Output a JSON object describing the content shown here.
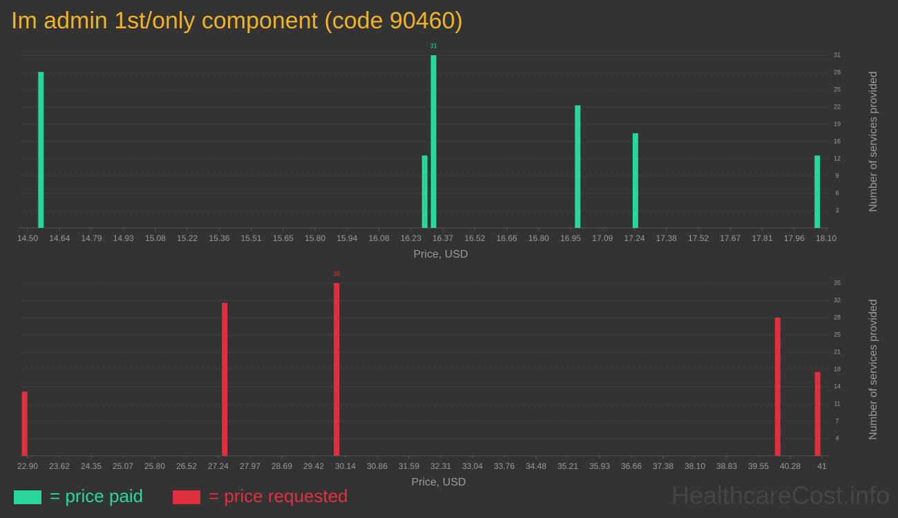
{
  "title": "Im admin 1st/only component (code 90460)",
  "watermark": "HealthcareCost.info",
  "chart_data": [
    {
      "type": "bar",
      "x_label": "Price, USD",
      "y_label": "Number of services provided",
      "xlim": [
        14.5,
        18.1
      ],
      "xticks": [
        {
          "value": 14.5,
          "label": "14.50"
        },
        {
          "value": 14.644,
          "label": "14.64"
        },
        {
          "value": 14.788,
          "label": "14.79"
        },
        {
          "value": 14.932,
          "label": "14.93"
        },
        {
          "value": 15.076,
          "label": "15.08"
        },
        {
          "value": 15.22,
          "label": "15.22"
        },
        {
          "value": 15.364,
          "label": "15.36"
        },
        {
          "value": 15.508,
          "label": "15.51"
        },
        {
          "value": 15.652,
          "label": "15.65"
        },
        {
          "value": 15.796,
          "label": "15.80"
        },
        {
          "value": 15.94,
          "label": "15.94"
        },
        {
          "value": 16.084,
          "label": "16.08"
        },
        {
          "value": 16.228,
          "label": "16.23"
        },
        {
          "value": 16.372,
          "label": "16.37"
        },
        {
          "value": 16.516,
          "label": "16.52"
        },
        {
          "value": 16.66,
          "label": "16.66"
        },
        {
          "value": 16.804,
          "label": "16.80"
        },
        {
          "value": 16.948,
          "label": "16.95"
        },
        {
          "value": 17.092,
          "label": "17.09"
        },
        {
          "value": 17.236,
          "label": "17.24"
        },
        {
          "value": 17.38,
          "label": "17.38"
        },
        {
          "value": 17.524,
          "label": "17.52"
        },
        {
          "value": 17.668,
          "label": "17.67"
        },
        {
          "value": 17.812,
          "label": "17.81"
        },
        {
          "value": 17.956,
          "label": "17.96"
        },
        {
          "value": 18.1,
          "label": "18.10"
        }
      ],
      "ylim": [
        0,
        31
      ],
      "yticks": [
        {
          "value": 3.1,
          "label": "3"
        },
        {
          "value": 6.2,
          "label": "6"
        },
        {
          "value": 9.3,
          "label": "9"
        },
        {
          "value": 12.4,
          "label": "12"
        },
        {
          "value": 15.5,
          "label": "16"
        },
        {
          "value": 18.6,
          "label": "19"
        },
        {
          "value": 21.7,
          "label": "22"
        },
        {
          "value": 24.8,
          "label": "25"
        },
        {
          "value": 27.9,
          "label": "28"
        },
        31
      ],
      "grid": true,
      "series": [
        {
          "name": "= price paid",
          "color": "#27d89a",
          "x": [
            14.56,
            16.29,
            16.33,
            16.98,
            17.24,
            18.06
          ],
          "values": [
            28,
            13,
            31,
            22,
            17,
            13
          ]
        }
      ]
    },
    {
      "type": "bar",
      "x_label": "Price, USD",
      "y_label": "Number of services provided",
      "xlim": [
        22.9,
        41
      ],
      "xticks": [
        {
          "value": 22.9,
          "label": "22.90"
        },
        {
          "value": 23.624,
          "label": "23.62"
        },
        {
          "value": 24.348,
          "label": "24.35"
        },
        {
          "value": 25.072,
          "label": "25.07"
        },
        {
          "value": 25.796,
          "label": "25.80"
        },
        {
          "value": 26.52,
          "label": "26.52"
        },
        {
          "value": 27.244,
          "label": "27.24"
        },
        {
          "value": 27.968,
          "label": "27.97"
        },
        {
          "value": 28.692,
          "label": "28.69"
        },
        {
          "value": 29.416,
          "label": "29.42"
        },
        {
          "value": 30.14,
          "label": "30.14"
        },
        {
          "value": 30.864,
          "label": "30.86"
        },
        {
          "value": 31.588,
          "label": "31.59"
        },
        {
          "value": 32.312,
          "label": "32.31"
        },
        {
          "value": 33.036,
          "label": "33.04"
        },
        {
          "value": 33.76,
          "label": "33.76"
        },
        {
          "value": 34.484,
          "label": "34.48"
        },
        {
          "value": 35.208,
          "label": "35.21"
        },
        {
          "value": 35.932,
          "label": "35.93"
        },
        {
          "value": 36.656,
          "label": "36.66"
        },
        {
          "value": 37.38,
          "label": "37.38"
        },
        {
          "value": 38.104,
          "label": "38.10"
        },
        {
          "value": 38.828,
          "label": "38.83"
        },
        {
          "value": 39.552,
          "label": "39.55"
        },
        {
          "value": 40.276,
          "label": "40.28"
        },
        41
      ],
      "ylim": [
        0,
        35
      ],
      "yticks": [
        {
          "value": 3.5,
          "label": "4"
        },
        {
          "value": 7,
          "label": "7"
        },
        {
          "value": 10.5,
          "label": "11"
        },
        {
          "value": 14,
          "label": "14"
        },
        {
          "value": 17.5,
          "label": "18"
        },
        {
          "value": 21,
          "label": "21"
        },
        {
          "value": 24.5,
          "label": "25"
        },
        {
          "value": 28,
          "label": "28"
        },
        {
          "value": 31.5,
          "label": "32"
        },
        35
      ],
      "grid": true,
      "series": [
        {
          "name": "= price requested",
          "color": "#e0303f",
          "x": [
            22.83,
            27.39,
            29.94,
            39.99,
            40.9
          ],
          "values": [
            13,
            31,
            35,
            28,
            17
          ]
        }
      ]
    }
  ]
}
